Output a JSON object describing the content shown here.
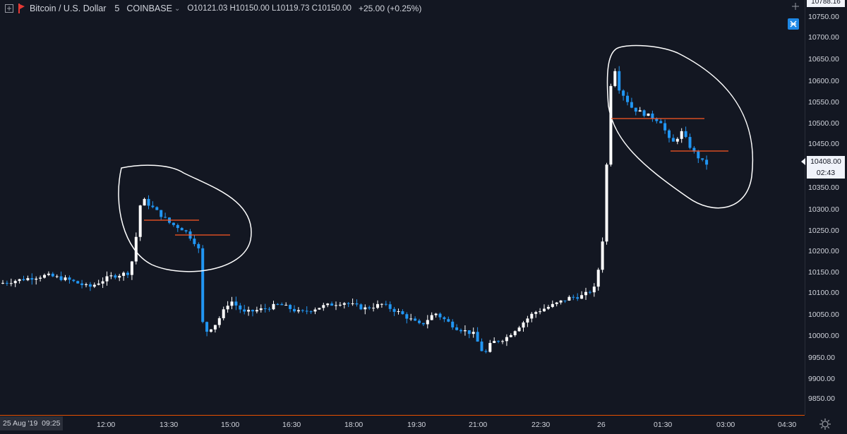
{
  "header": {
    "add_symbol_icon": "plus-square-icon",
    "exchange_flag_icon": "red-flag-icon",
    "symbol": "Bitcoin / U.S. Dollar",
    "interval": "5",
    "exchange": "COINBASE",
    "ohlc": {
      "open_label": "O",
      "open": "10121.03",
      "high_label": "H",
      "high": "10150.00",
      "low_label": "L",
      "low": "10119.73",
      "close_label": "C",
      "close": "10150.00"
    },
    "change": "+25.00 (+0.25%)"
  },
  "price_axis": {
    "ticks": [
      "10750.00",
      "10700.00",
      "10650.00",
      "10600.00",
      "10550.00",
      "10500.00",
      "10450.00",
      "10350.00",
      "10300.00",
      "10250.00",
      "10200.00",
      "10150.00",
      "10100.00",
      "10050.00",
      "10000.00",
      "9950.00",
      "9900.00",
      "9850.00"
    ],
    "top_value": "10788.16",
    "current_price": "10408.00",
    "countdown": "02:43"
  },
  "time_axis": {
    "date_label": "25 Aug '19",
    "date_time": "09:25",
    "ticks": [
      "12:00",
      "13:30",
      "15:00",
      "16:30",
      "18:00",
      "19:30",
      "21:00",
      "22:30",
      "26",
      "01:30",
      "03:00",
      "04:30"
    ]
  },
  "colors": {
    "background": "#131722",
    "up_candle": "#ffffff",
    "down_candle": "#2196f3",
    "annotation_line": "#ff5722",
    "annotation_circle": "#ffffff",
    "axis_border": "#e65100"
  },
  "chart_data": {
    "type": "candlestick",
    "ylim": [
      9820,
      10795
    ],
    "annotations": [
      {
        "type": "ellipse",
        "around": "12:50-14:20 bars"
      },
      {
        "type": "ellipse",
        "around": "00:15-02:20 bars"
      },
      {
        "type": "hline",
        "price": 10272,
        "from": "12:55",
        "to": "14:00"
      },
      {
        "type": "hline",
        "price": 10232,
        "from": "13:45",
        "to": "14:50"
      },
      {
        "type": "hline",
        "price": 10510,
        "from": "00:15",
        "to": "01:50"
      },
      {
        "type": "hline",
        "price": 10432,
        "from": "01:25",
        "to": "02:25"
      }
    ]
  }
}
